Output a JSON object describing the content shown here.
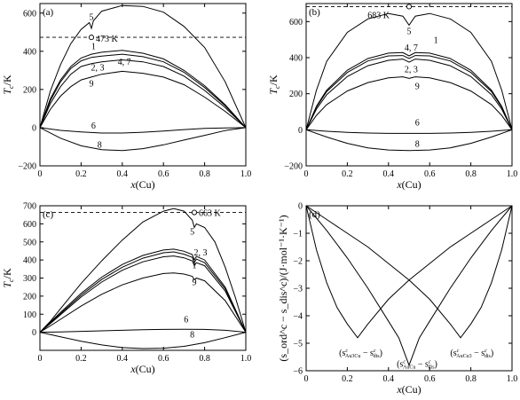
{
  "chart_data": [
    {
      "panel": "(a)",
      "type": "line",
      "xlabel": "x(Cu)",
      "ylabel_main": "T",
      "ylabel_sub": "c",
      "ylabel_unit": "/K",
      "xlim": [
        0,
        1.0
      ],
      "ylim": [
        -200,
        650
      ],
      "xticks": [
        "0",
        "0.2",
        "0.4",
        "0.6",
        "0.8",
        "1.0"
      ],
      "yticks": [
        "−200",
        "0",
        "200",
        "400",
        "600"
      ],
      "ytick_values": [
        -200,
        0,
        200,
        400,
        600
      ],
      "ref_line": {
        "value": 473,
        "label": "473 K",
        "x": 0.25
      },
      "curve_labels": [
        {
          "text": "5",
          "x": 0.25,
          "y": 565
        },
        {
          "text": "1",
          "x": 0.26,
          "y": 410
        },
        {
          "text": "2, 3",
          "x": 0.28,
          "y": 300
        },
        {
          "text": "4, 7",
          "x": 0.41,
          "y": 330
        },
        {
          "text": "9",
          "x": 0.25,
          "y": 215
        },
        {
          "text": "6",
          "x": 0.26,
          "y": -6
        },
        {
          "text": "8",
          "x": 0.29,
          "y": -105
        }
      ],
      "series": [
        {
          "label": "5",
          "x": [
            0,
            0.05,
            0.1,
            0.15,
            0.2,
            0.24,
            0.25,
            0.26,
            0.3,
            0.4,
            0.5,
            0.6,
            0.7,
            0.8,
            0.9,
            1.0
          ],
          "y": [
            0,
            190,
            330,
            440,
            515,
            550,
            520,
            560,
            610,
            640,
            635,
            605,
            530,
            420,
            240,
            0
          ]
        },
        {
          "label": "1",
          "x": [
            0,
            0.05,
            0.1,
            0.15,
            0.2,
            0.25,
            0.3,
            0.4,
            0.5,
            0.6,
            0.7,
            0.8,
            0.9,
            1.0
          ],
          "y": [
            0,
            150,
            250,
            320,
            365,
            385,
            395,
            405,
            390,
            360,
            300,
            220,
            120,
            0
          ]
        },
        {
          "label": "4, 7",
          "x": [
            0,
            0.05,
            0.1,
            0.15,
            0.2,
            0.25,
            0.3,
            0.4,
            0.5,
            0.6,
            0.7,
            0.8,
            0.9,
            1.0
          ],
          "y": [
            0,
            140,
            240,
            310,
            350,
            368,
            375,
            385,
            372,
            345,
            290,
            210,
            115,
            0
          ]
        },
        {
          "label": "2, 3",
          "x": [
            0,
            0.05,
            0.1,
            0.15,
            0.2,
            0.25,
            0.3,
            0.4,
            0.5,
            0.6,
            0.7,
            0.8,
            0.9,
            1.0
          ],
          "y": [
            0,
            125,
            215,
            280,
            320,
            335,
            345,
            355,
            345,
            320,
            270,
            195,
            105,
            0
          ]
        },
        {
          "label": "9",
          "x": [
            0,
            0.05,
            0.1,
            0.15,
            0.2,
            0.25,
            0.3,
            0.4,
            0.5,
            0.6,
            0.7,
            0.8,
            0.9,
            1.0
          ],
          "y": [
            0,
            95,
            165,
            215,
            250,
            265,
            280,
            295,
            285,
            265,
            225,
            160,
            85,
            0
          ]
        },
        {
          "label": "6",
          "x": [
            0,
            0.1,
            0.2,
            0.3,
            0.4,
            0.5,
            0.6,
            0.7,
            0.8,
            0.9,
            1.0
          ],
          "y": [
            0,
            -14,
            -22,
            -28,
            -28,
            -24,
            -18,
            -10,
            -4,
            -1,
            0
          ]
        },
        {
          "label": "8",
          "x": [
            0,
            0.1,
            0.2,
            0.3,
            0.4,
            0.5,
            0.6,
            0.7,
            0.8,
            0.9,
            1.0
          ],
          "y": [
            0,
            -55,
            -95,
            -115,
            -120,
            -110,
            -90,
            -65,
            -40,
            -15,
            0
          ]
        }
      ]
    },
    {
      "panel": "(b)",
      "type": "line",
      "xlabel": "x(Cu)",
      "ylabel_main": "T",
      "ylabel_sub": "c",
      "ylabel_unit": "/K",
      "xlim": [
        0,
        1.0
      ],
      "ylim": [
        -200,
        700
      ],
      "xticks": [
        "0",
        "0.2",
        "0.4",
        "0.6",
        "0.8",
        "1.0"
      ],
      "yticks": [
        "−200",
        "0",
        "200",
        "400",
        "600"
      ],
      "ytick_values": [
        -200,
        0,
        200,
        400,
        600
      ],
      "ref_line": {
        "value": 683,
        "label": "683 K",
        "x": 0.5
      },
      "curve_labels": [
        {
          "text": "5",
          "x": 0.5,
          "y": 530
        },
        {
          "text": "4, 7",
          "x": 0.51,
          "y": 440
        },
        {
          "text": "1",
          "x": 0.63,
          "y": 480
        },
        {
          "text": "2, 3",
          "x": 0.51,
          "y": 320
        },
        {
          "text": "9",
          "x": 0.54,
          "y": 225
        },
        {
          "text": "6",
          "x": 0.54,
          "y": 25
        },
        {
          "text": "8",
          "x": 0.54,
          "y": -95
        }
      ],
      "series": [
        {
          "label": "5",
          "x": [
            0,
            0.05,
            0.1,
            0.2,
            0.3,
            0.4,
            0.47,
            0.5,
            0.53,
            0.6,
            0.7,
            0.8,
            0.9,
            0.95,
            1.0
          ],
          "y": [
            0,
            220,
            380,
            540,
            615,
            645,
            630,
            580,
            630,
            645,
            615,
            540,
            380,
            220,
            0
          ]
        },
        {
          "label": "4, 7",
          "x": [
            0,
            0.05,
            0.1,
            0.2,
            0.3,
            0.4,
            0.47,
            0.5,
            0.53,
            0.6,
            0.7,
            0.8,
            0.9,
            0.95,
            1.0
          ],
          "y": [
            0,
            130,
            220,
            330,
            395,
            425,
            428,
            410,
            428,
            425,
            395,
            330,
            220,
            130,
            0
          ]
        },
        {
          "label": "1",
          "x": [
            0,
            0.05,
            0.1,
            0.2,
            0.3,
            0.4,
            0.47,
            0.5,
            0.53,
            0.6,
            0.7,
            0.8,
            0.9,
            0.95,
            1.0
          ],
          "y": [
            0,
            125,
            212,
            318,
            382,
            410,
            412,
            395,
            412,
            410,
            382,
            318,
            212,
            125,
            0
          ]
        },
        {
          "label": "2, 3",
          "x": [
            0,
            0.05,
            0.1,
            0.2,
            0.3,
            0.4,
            0.47,
            0.5,
            0.53,
            0.6,
            0.7,
            0.8,
            0.9,
            0.95,
            1.0
          ],
          "y": [
            0,
            115,
            195,
            295,
            355,
            385,
            392,
            375,
            392,
            385,
            355,
            295,
            195,
            115,
            0
          ]
        },
        {
          "label": "9",
          "x": [
            0,
            0.05,
            0.1,
            0.2,
            0.3,
            0.4,
            0.47,
            0.5,
            0.53,
            0.6,
            0.7,
            0.8,
            0.9,
            0.95,
            1.0
          ],
          "y": [
            0,
            80,
            140,
            215,
            262,
            288,
            294,
            285,
            294,
            288,
            262,
            215,
            140,
            80,
            0
          ]
        },
        {
          "label": "6",
          "x": [
            0,
            0.1,
            0.2,
            0.3,
            0.4,
            0.5,
            0.6,
            0.7,
            0.8,
            0.9,
            1.0
          ],
          "y": [
            0,
            -8,
            -14,
            -18,
            -20,
            -20,
            -20,
            -18,
            -14,
            -8,
            0
          ]
        },
        {
          "label": "8",
          "x": [
            0,
            0.1,
            0.2,
            0.3,
            0.4,
            0.5,
            0.6,
            0.7,
            0.8,
            0.9,
            1.0
          ],
          "y": [
            0,
            -40,
            -75,
            -100,
            -112,
            -115,
            -112,
            -100,
            -75,
            -40,
            0
          ]
        }
      ]
    },
    {
      "panel": "(c)",
      "type": "line",
      "xlabel": "x(Cu)",
      "ylabel_main": "T",
      "ylabel_sub": "c",
      "ylabel_unit": "/K",
      "xlim": [
        0,
        1.0
      ],
      "ylim": [
        -100,
        700
      ],
      "xticks": [
        "0",
        "0.2",
        "0.4",
        "0.6",
        "0.8",
        "1.0"
      ],
      "yticks": [
        "0",
        "100",
        "200",
        "300",
        "400",
        "500",
        "600",
        "700"
      ],
      "ytick_values": [
        0,
        100,
        200,
        300,
        400,
        500,
        600,
        700
      ],
      "ref_line": {
        "value": 663,
        "label": "663 K",
        "x": 0.75
      },
      "curve_labels": [
        {
          "text": "5",
          "x": 0.74,
          "y": 540
        },
        {
          "text": "2, 3",
          "x": 0.78,
          "y": 425
        },
        {
          "text": "1",
          "x": 0.75,
          "y": 355
        },
        {
          "text": "9",
          "x": 0.75,
          "y": 260
        },
        {
          "text": "6",
          "x": 0.71,
          "y": 55
        },
        {
          "text": "8",
          "x": 0.74,
          "y": -30
        }
      ],
      "series": [
        {
          "label": "5",
          "x": [
            0,
            0.05,
            0.1,
            0.2,
            0.3,
            0.4,
            0.5,
            0.6,
            0.65,
            0.7,
            0.74,
            0.75,
            0.76,
            0.8,
            0.85,
            0.9,
            0.95,
            1.0
          ],
          "y": [
            0,
            60,
            130,
            270,
            395,
            510,
            610,
            670,
            685,
            670,
            620,
            580,
            600,
            580,
            500,
            360,
            190,
            0
          ]
        },
        {
          "label": "2, 3",
          "x": [
            0,
            0.05,
            0.1,
            0.2,
            0.3,
            0.4,
            0.5,
            0.6,
            0.65,
            0.7,
            0.74,
            0.75,
            0.76,
            0.8,
            0.9,
            1.0
          ],
          "y": [
            0,
            55,
            110,
            215,
            305,
            375,
            425,
            455,
            460,
            448,
            430,
            400,
            420,
            400,
            250,
            0
          ]
        },
        {
          "label": "1",
          "x": [
            0,
            0.05,
            0.1,
            0.2,
            0.3,
            0.4,
            0.5,
            0.6,
            0.65,
            0.7,
            0.74,
            0.75,
            0.76,
            0.8,
            0.9,
            1.0
          ],
          "y": [
            0,
            50,
            103,
            205,
            292,
            360,
            410,
            440,
            445,
            432,
            415,
            385,
            405,
            385,
            240,
            0
          ]
        },
        {
          "label": "4, 7",
          "x": [
            0,
            0.05,
            0.1,
            0.2,
            0.3,
            0.4,
            0.5,
            0.6,
            0.65,
            0.7,
            0.74,
            0.75,
            0.76,
            0.8,
            0.9,
            1.0
          ],
          "y": [
            0,
            47,
            97,
            195,
            278,
            343,
            390,
            418,
            422,
            412,
            395,
            368,
            385,
            368,
            228,
            0
          ]
        },
        {
          "label": "9",
          "x": [
            0,
            0.05,
            0.1,
            0.2,
            0.3,
            0.4,
            0.5,
            0.6,
            0.65,
            0.7,
            0.74,
            0.75,
            0.76,
            0.8,
            0.9,
            1.0
          ],
          "y": [
            0,
            35,
            72,
            145,
            210,
            262,
            300,
            325,
            328,
            322,
            310,
            290,
            300,
            285,
            175,
            0
          ]
        },
        {
          "label": "6",
          "x": [
            0,
            0.1,
            0.2,
            0.3,
            0.4,
            0.5,
            0.6,
            0.7,
            0.8,
            0.9,
            1.0
          ],
          "y": [
            0,
            2,
            5,
            8,
            11,
            14,
            16,
            17,
            16,
            11,
            0
          ]
        },
        {
          "label": "8",
          "x": [
            0,
            0.1,
            0.2,
            0.3,
            0.4,
            0.5,
            0.6,
            0.7,
            0.8,
            0.9,
            1.0
          ],
          "y": [
            0,
            -25,
            -50,
            -70,
            -85,
            -90,
            -88,
            -78,
            -58,
            -30,
            0
          ]
        }
      ]
    },
    {
      "panel": "(d)",
      "type": "line",
      "xlabel": "x(Cu)",
      "ylabel": "(s_ord^c − s_dis^c)/(J·mol⁻¹·K⁻¹)",
      "xlim": [
        0,
        1.0
      ],
      "ylim": [
        -6,
        0
      ],
      "xticks": [
        "0",
        "0.2",
        "0.4",
        "0.6",
        "0.8",
        "1.0"
      ],
      "yticks": [
        "−6",
        "−5",
        "−4",
        "−3",
        "−2",
        "−1",
        "0"
      ],
      "ytick_values": [
        -6,
        -5,
        -4,
        -3,
        -2,
        -1,
        0
      ],
      "annotations": [
        {
          "text": "(s",
          "sub_top": "c",
          "sub_bottom": "Au3Cu",
          "mid": " − s",
          "sub2_top": "c",
          "sub2_bottom": "dis",
          "end": ")",
          "x": 0.16,
          "y": -5.45
        },
        {
          "text": "(s",
          "sub_top": "c",
          "sub_bottom": "AuCu",
          "mid": " − s",
          "sub2_top": "c",
          "sub2_bottom": "dis",
          "end": ")",
          "x": 0.44,
          "y": -5.85
        },
        {
          "text": "(s",
          "sub_top": "c",
          "sub_bottom": "AuCu3",
          "mid": " − s",
          "sub2_top": "c",
          "sub2_bottom": "dis",
          "end": ")",
          "x": 0.7,
          "y": -5.45
        }
      ],
      "series": [
        {
          "label": "Au3Cu",
          "x": [
            0,
            0.05,
            0.1,
            0.15,
            0.2,
            0.25,
            0.3,
            0.4,
            0.5,
            0.6,
            0.7,
            0.8,
            0.9,
            1.0
          ],
          "y": [
            0,
            -1.6,
            -2.8,
            -3.7,
            -4.3,
            -4.8,
            -4.3,
            -3.4,
            -2.7,
            -2.1,
            -1.5,
            -1.0,
            -0.5,
            0
          ]
        },
        {
          "label": "AuCu",
          "x": [
            0,
            0.1,
            0.2,
            0.3,
            0.4,
            0.45,
            0.5,
            0.55,
            0.6,
            0.7,
            0.8,
            0.9,
            1.0
          ],
          "y": [
            0,
            -0.9,
            -1.9,
            -3.0,
            -4.2,
            -4.8,
            -5.8,
            -4.8,
            -4.2,
            -3.0,
            -1.9,
            -0.9,
            0
          ]
        },
        {
          "label": "AuCu3",
          "x": [
            0,
            0.1,
            0.2,
            0.3,
            0.4,
            0.5,
            0.6,
            0.7,
            0.75,
            0.8,
            0.85,
            0.9,
            0.95,
            1.0
          ],
          "y": [
            0,
            -0.5,
            -1.0,
            -1.5,
            -2.1,
            -2.7,
            -3.4,
            -4.3,
            -4.8,
            -4.3,
            -3.7,
            -2.8,
            -1.6,
            0
          ]
        }
      ]
    }
  ]
}
